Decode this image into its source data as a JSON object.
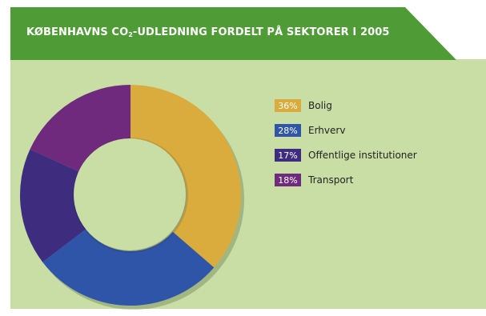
{
  "chart_data": {
    "type": "pie",
    "variant": "donut",
    "title_prefix": "KØBENHAVNS CO",
    "title_sub": "2",
    "title_suffix": "-UDLEDNING FORDELT PÅ SEKTORER I 2005",
    "slices": [
      {
        "label": "Bolig",
        "value": 36,
        "value_label": "36%",
        "color": "#d9ac3d"
      },
      {
        "label": "Erhverv",
        "value": 28,
        "value_label": "28%",
        "color": "#2f55a8"
      },
      {
        "label": "Offentlige institutioner",
        "value": 17,
        "value_label": "17%",
        "color": "#3e2c7e"
      },
      {
        "label": "Transport",
        "value": 18,
        "value_label": "18%",
        "color": "#6f2a7e"
      }
    ],
    "legend_position": "right"
  },
  "colors": {
    "banner": "#4f9b36",
    "panel": "#c9dea5",
    "hole": "#c9dea5"
  }
}
